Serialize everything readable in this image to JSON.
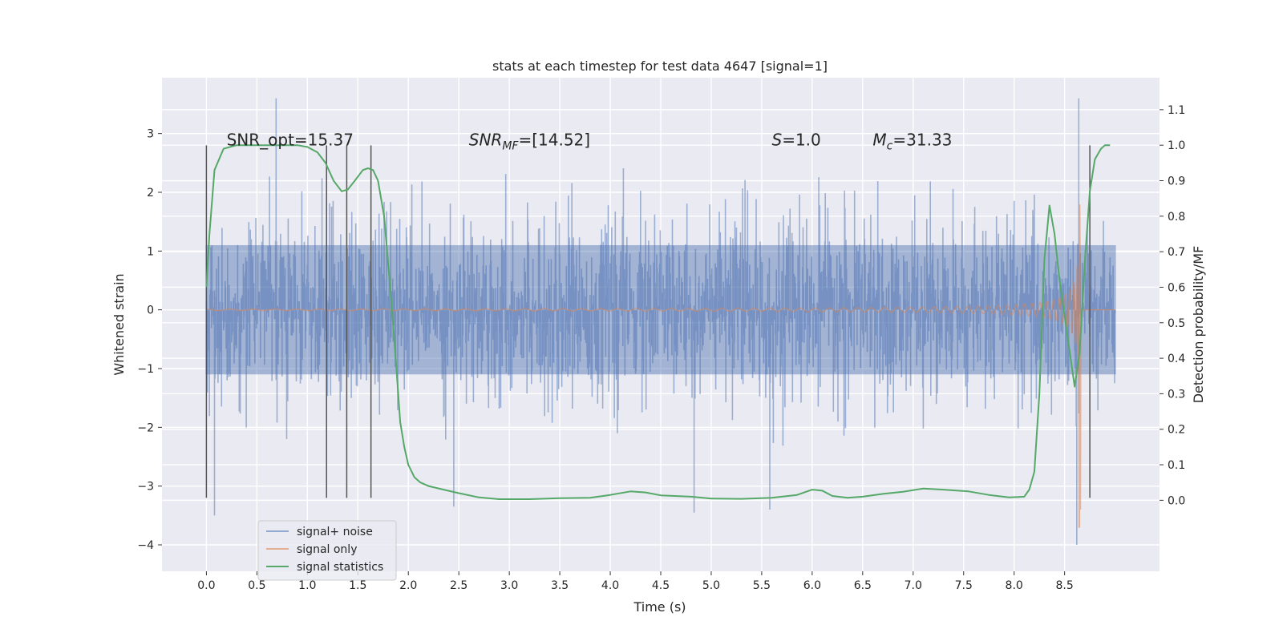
{
  "chart_data": {
    "type": "line",
    "title": "stats at each timestep for test data 4647 [signal=1]",
    "xlabel": "Time (s)",
    "ylabel": "Whitened strain",
    "ylabel_right": "Detection probability/MF",
    "xlim": [
      -0.44,
      9.44
    ],
    "ylim": [
      -4.45,
      3.95
    ],
    "ylim_right": [
      -0.2,
      1.19
    ],
    "x_ticks": [
      "0.0",
      "0.5",
      "1.0",
      "1.5",
      "2.0",
      "2.5",
      "3.0",
      "3.5",
      "4.0",
      "4.5",
      "5.0",
      "5.5",
      "6.0",
      "6.5",
      "7.0",
      "7.5",
      "8.0",
      "8.5"
    ],
    "x_tick_values": [
      0,
      0.5,
      1,
      1.5,
      2,
      2.5,
      3,
      3.5,
      4,
      4.5,
      5,
      5.5,
      6,
      6.5,
      7,
      7.5,
      8,
      8.5
    ],
    "y_ticks": [
      "3",
      "2",
      "1",
      "0",
      "−1",
      "−2",
      "−3",
      "−4"
    ],
    "y_tick_values": [
      3,
      2,
      1,
      0,
      -1,
      -2,
      -3,
      -4
    ],
    "y_right_ticks": [
      "1.1",
      "1.0",
      "0.9",
      "0.8",
      "0.7",
      "0.6",
      "0.5",
      "0.4",
      "0.3",
      "0.2",
      "0.1",
      "0.0"
    ],
    "y_right_tick_values": [
      1.1,
      1.0,
      0.9,
      0.8,
      0.7,
      0.6,
      0.5,
      0.4,
      0.3,
      0.2,
      0.1,
      0.0
    ],
    "annotations": [
      {
        "text": "SNR_opt=15.37",
        "x": 0.2,
        "y": 2.8
      },
      {
        "text": "SNR",
        "sub": "MF",
        "rest": "=[14.52]",
        "x": 2.6,
        "y": 2.8
      },
      {
        "text": "S",
        "rest": "=1.0",
        "x": 5.6,
        "y": 2.8
      },
      {
        "text": "M",
        "sub": "c",
        "rest": "=31.33",
        "x": 6.6,
        "y": 2.8
      }
    ],
    "vlines": [
      {
        "x": 0.0,
        "ymin": -3.2,
        "ymax": 2.8
      },
      {
        "x": 1.19,
        "ymin": -3.2,
        "ymax": 2.8
      },
      {
        "x": 1.39,
        "ymin": -3.2,
        "ymax": 2.8
      },
      {
        "x": 1.63,
        "ymin": -3.2,
        "ymax": 2.8
      },
      {
        "x": 8.75,
        "ymin": -3.2,
        "ymax": 2.8
      }
    ],
    "series": [
      {
        "name": "signal+ noise",
        "color": "#4c72b0",
        "opacity": 0.5,
        "x_range": [
          0,
          9
        ],
        "sigma": 0.8,
        "outliers": [
          [
            0.69,
            3.6
          ],
          [
            0.08,
            -3.5
          ],
          [
            4.83,
            -3.45
          ],
          [
            8.64,
            3.6
          ],
          [
            8.62,
            -4.0
          ],
          [
            2.45,
            -3.35
          ],
          [
            5.58,
            -3.4
          ]
        ]
      },
      {
        "name": "signal only",
        "color": "#dd8452",
        "opacity": 0.55,
        "x_range": [
          0,
          9
        ],
        "chirp_end": 8.66,
        "envelope_peak": 3.4,
        "peak_min": -3.7
      },
      {
        "name": "signal statistics",
        "color": "#55a868",
        "axis": "right",
        "x": [
          0.0,
          0.03,
          0.08,
          0.17,
          0.3,
          0.5,
          0.7,
          0.9,
          1.0,
          1.1,
          1.18,
          1.26,
          1.34,
          1.4,
          1.47,
          1.55,
          1.6,
          1.65,
          1.7,
          1.76,
          1.82,
          1.88,
          1.92,
          1.96,
          2.0,
          2.06,
          2.12,
          2.2,
          2.35,
          2.5,
          2.7,
          2.9,
          3.2,
          3.5,
          3.8,
          4.0,
          4.2,
          4.35,
          4.5,
          4.8,
          5.0,
          5.3,
          5.6,
          5.85,
          6.0,
          6.1,
          6.2,
          6.35,
          6.5,
          6.7,
          6.9,
          7.1,
          7.3,
          7.55,
          7.75,
          7.95,
          8.1,
          8.15,
          8.2,
          8.25,
          8.3,
          8.35,
          8.4,
          8.45,
          8.5,
          8.55,
          8.6,
          8.65,
          8.7,
          8.75,
          8.8,
          8.86,
          8.9,
          8.95
        ],
        "values": [
          0.6,
          0.75,
          0.93,
          0.99,
          1.0,
          1.0,
          1.0,
          1.0,
          0.995,
          0.98,
          0.95,
          0.9,
          0.87,
          0.875,
          0.9,
          0.93,
          0.935,
          0.93,
          0.9,
          0.8,
          0.6,
          0.38,
          0.22,
          0.15,
          0.1,
          0.065,
          0.05,
          0.04,
          0.03,
          0.02,
          0.008,
          0.003,
          0.003,
          0.006,
          0.007,
          0.015,
          0.025,
          0.022,
          0.014,
          0.01,
          0.005,
          0.004,
          0.007,
          0.015,
          0.03,
          0.027,
          0.012,
          0.007,
          0.01,
          0.018,
          0.024,
          0.033,
          0.03,
          0.025,
          0.015,
          0.008,
          0.01,
          0.03,
          0.08,
          0.3,
          0.68,
          0.83,
          0.75,
          0.62,
          0.52,
          0.42,
          0.32,
          0.42,
          0.67,
          0.87,
          0.96,
          0.99,
          1.0,
          1.0
        ]
      }
    ],
    "legend": {
      "position": "lower-left",
      "entries": [
        "signal+ noise",
        "signal only",
        "signal statistics"
      ]
    },
    "grid": true,
    "background": "#eaeaf2"
  }
}
